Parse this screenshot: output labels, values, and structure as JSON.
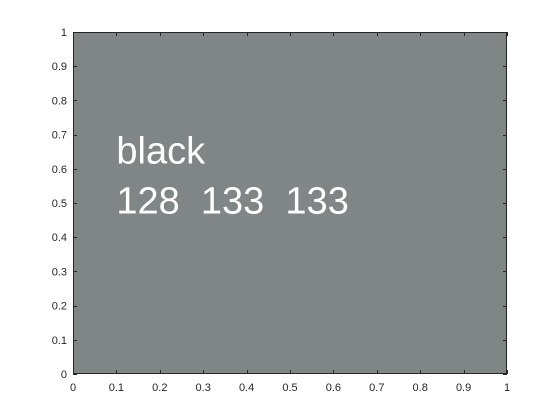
{
  "chart_data": {
    "type": "image",
    "title": "",
    "xlabel": "",
    "ylabel": "",
    "xlim": [
      0,
      1
    ],
    "ylim": [
      0,
      1
    ],
    "x_ticks": [
      0,
      0.1,
      0.2,
      0.3,
      0.4,
      0.5,
      0.6,
      0.7,
      0.8,
      0.9,
      1
    ],
    "y_ticks": [
      0,
      0.1,
      0.2,
      0.3,
      0.4,
      0.5,
      0.6,
      0.7,
      0.8,
      0.9,
      1
    ],
    "x_tick_labels": [
      "0",
      "0.1",
      "0.2",
      "0.3",
      "0.4",
      "0.5",
      "0.6",
      "0.7",
      "0.8",
      "0.9",
      "1"
    ],
    "y_tick_labels": [
      "0",
      "0.1",
      "0.2",
      "0.3",
      "0.4",
      "0.5",
      "0.6",
      "0.7",
      "0.8",
      "0.9",
      "1"
    ],
    "fill_rgb": [
      128,
      133,
      133
    ],
    "fill_color": "#808585",
    "text_color": "#ffffff",
    "axis_color": "#262626",
    "annotations": [
      {
        "text": "black",
        "x": 0.1,
        "y": 0.615
      },
      {
        "text": "128  133  133",
        "x": 0.1,
        "y": 0.47
      }
    ]
  }
}
